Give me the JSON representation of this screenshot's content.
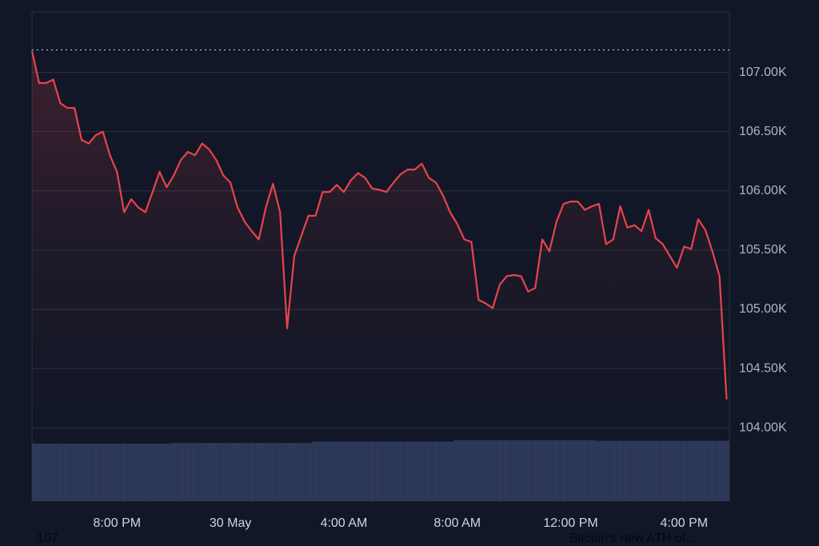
{
  "chart_data": {
    "type": "line",
    "x": [
      17,
      17.25,
      17.5,
      17.75,
      18,
      18.25,
      18.5,
      18.75,
      19,
      19.25,
      19.5,
      19.75,
      20,
      20.25,
      20.5,
      20.75,
      21,
      21.25,
      21.5,
      21.75,
      22,
      22.25,
      22.5,
      22.75,
      23,
      23.25,
      23.5,
      23.75,
      24,
      24.25,
      24.5,
      24.75,
      25,
      25.25,
      25.5,
      25.75,
      26,
      26.25,
      26.5,
      26.75,
      27,
      27.25,
      27.5,
      27.75,
      28,
      28.25,
      28.5,
      28.75,
      29,
      29.25,
      29.5,
      29.75,
      30,
      30.25,
      30.5,
      30.75,
      31,
      31.25,
      31.5,
      31.75,
      32,
      32.25,
      32.5,
      32.75,
      33,
      33.25,
      33.5,
      33.75,
      34,
      34.25,
      34.5,
      34.75,
      35,
      35.25,
      35.5,
      35.75,
      36,
      36.25,
      36.5,
      36.75,
      37,
      37.25,
      37.5,
      37.75,
      38,
      38.25,
      38.5,
      38.75,
      39,
      39.25,
      39.5,
      39.75,
      40,
      40.25,
      40.5,
      40.75,
      41,
      41.25,
      41.5
    ],
    "values": [
      107180,
      106910,
      106910,
      106940,
      106740,
      106700,
      106700,
      106430,
      106400,
      106470,
      106500,
      106300,
      106160,
      105820,
      105930,
      105860,
      105820,
      105990,
      106160,
      106030,
      106130,
      106260,
      106330,
      106300,
      106400,
      106350,
      106260,
      106130,
      106070,
      105860,
      105740,
      105660,
      105590,
      105860,
      106060,
      105820,
      104840,
      105450,
      105620,
      105790,
      105790,
      105990,
      105990,
      106050,
      105990,
      106090,
      106150,
      106110,
      106020,
      106010,
      105990,
      106070,
      106140,
      106180,
      106180,
      106230,
      106110,
      106070,
      105960,
      105820,
      105720,
      105590,
      105570,
      105080,
      105050,
      105010,
      105210,
      105280,
      105290,
      105280,
      105150,
      105180,
      105590,
      105490,
      105740,
      105890,
      105910,
      105910,
      105840,
      105870,
      105890,
      105550,
      105590,
      105870,
      105690,
      105710,
      105660,
      105840,
      105600,
      105550,
      105450,
      105350,
      105530,
      105510,
      105760,
      105670,
      105490,
      105280,
      104240
    ],
    "color": "#e8434d",
    "reference_line": 107190,
    "volume": [
      80,
      80,
      80,
      80,
      80,
      80,
      80,
      80,
      80,
      80,
      80,
      80,
      80,
      80,
      80,
      80,
      80,
      80,
      80,
      80,
      81,
      81,
      81,
      81,
      81,
      81,
      81,
      81,
      81,
      81,
      81,
      81,
      81,
      81,
      81,
      81,
      81,
      81,
      81,
      81,
      83,
      83,
      83,
      83,
      83,
      83,
      83,
      83,
      83,
      83,
      83,
      83,
      83,
      83,
      83,
      83,
      83,
      83,
      83,
      83,
      85,
      85,
      85,
      85,
      85,
      85,
      85,
      85,
      85,
      85,
      85,
      85,
      85,
      85,
      85,
      85,
      85,
      85,
      85,
      85,
      84,
      84,
      84,
      84,
      84,
      84,
      84,
      84,
      84,
      84,
      84,
      84,
      84,
      84,
      84,
      84,
      84,
      84,
      84
    ],
    "volume_lim": [
      0,
      100
    ],
    "volume_color": "#2e3858",
    "xlim": [
      17,
      41.6
    ],
    "xticks": [
      {
        "value": 20,
        "label": "8:00 PM"
      },
      {
        "value": 24,
        "label": "30 May"
      },
      {
        "value": 28,
        "label": "4:00 AM"
      },
      {
        "value": 32,
        "label": "8:00 AM"
      },
      {
        "value": 36,
        "label": "12:00 PM"
      },
      {
        "value": 40,
        "label": "4:00 PM"
      }
    ],
    "ylim": [
      103380,
      107510
    ],
    "yticks": [
      {
        "value": 104000,
        "label": "104.00K"
      },
      {
        "value": 104500,
        "label": "104.50K"
      },
      {
        "value": 105000,
        "label": "105.00K"
      },
      {
        "value": 105500,
        "label": "105.50K"
      },
      {
        "value": 106000,
        "label": "106.00K"
      },
      {
        "value": 106500,
        "label": "106.50K"
      },
      {
        "value": 107000,
        "label": "107.00K"
      }
    ],
    "grid": true
  },
  "footer": {
    "left": "107",
    "right": "Bitcoin's new ATH of..."
  }
}
